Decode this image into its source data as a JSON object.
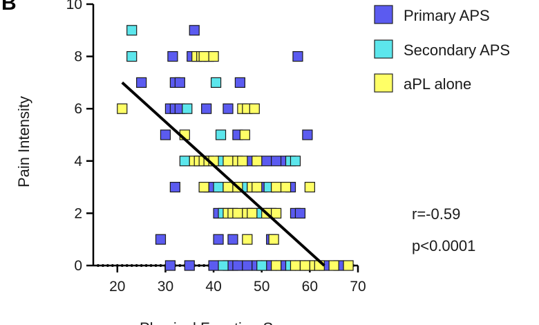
{
  "chart_data": {
    "type": "scatter",
    "panel_label": "B",
    "title": "",
    "xlabel": "Physical Function Score",
    "ylabel": "Pain Intensity",
    "xlim": [
      15,
      70
    ],
    "ylim": [
      0,
      10
    ],
    "xticks": [
      20,
      30,
      40,
      50,
      60,
      70
    ],
    "yticks": [
      0,
      2,
      4,
      6,
      8,
      10
    ],
    "legend_position": "top-right",
    "series": [
      {
        "name": "Primary APS",
        "color": "#5b5bf0",
        "points": [
          [
            36,
            9
          ],
          [
            31.5,
            8
          ],
          [
            35.5,
            8
          ],
          [
            57.5,
            8
          ],
          [
            25,
            7
          ],
          [
            32,
            7
          ],
          [
            33,
            7
          ],
          [
            45.5,
            7
          ],
          [
            31,
            6
          ],
          [
            32,
            6
          ],
          [
            33,
            6
          ],
          [
            38.5,
            6
          ],
          [
            43,
            6
          ],
          [
            30,
            5
          ],
          [
            45,
            5
          ],
          [
            59.5,
            5
          ],
          [
            37,
            4
          ],
          [
            42,
            4
          ],
          [
            48,
            4
          ],
          [
            51,
            4
          ],
          [
            53,
            4
          ],
          [
            55,
            4
          ],
          [
            32,
            3
          ],
          [
            38,
            3
          ],
          [
            39,
            3
          ],
          [
            40,
            3
          ],
          [
            42,
            3
          ],
          [
            44,
            3
          ],
          [
            47,
            3
          ],
          [
            50,
            3
          ],
          [
            53,
            3
          ],
          [
            56,
            3
          ],
          [
            41,
            2
          ],
          [
            49,
            2
          ],
          [
            52,
            2
          ],
          [
            57,
            2
          ],
          [
            58,
            2
          ],
          [
            29,
            1
          ],
          [
            41,
            1
          ],
          [
            44,
            1
          ],
          [
            52,
            1
          ],
          [
            31,
            0
          ],
          [
            35,
            0
          ],
          [
            40,
            0
          ],
          [
            43,
            0
          ],
          [
            44,
            0
          ],
          [
            45,
            0
          ],
          [
            47,
            0
          ],
          [
            49,
            0
          ],
          [
            51,
            0
          ],
          [
            52,
            0
          ],
          [
            54,
            0
          ],
          [
            55,
            0
          ],
          [
            58,
            0
          ],
          [
            63,
            0
          ],
          [
            66,
            0
          ]
        ]
      },
      {
        "name": "Secondary APS",
        "color": "#5ce6ec",
        "points": [
          [
            23,
            9
          ],
          [
            23,
            8
          ],
          [
            39,
            8
          ],
          [
            40.5,
            7
          ],
          [
            34.5,
            6
          ],
          [
            41.5,
            5
          ],
          [
            34,
            4
          ],
          [
            41.5,
            4
          ],
          [
            44,
            4
          ],
          [
            56,
            4
          ],
          [
            57,
            4
          ],
          [
            41,
            3
          ],
          [
            43,
            3
          ],
          [
            46,
            3
          ],
          [
            51.5,
            3
          ],
          [
            42,
            2
          ],
          [
            47,
            2
          ],
          [
            50,
            2
          ],
          [
            42,
            0
          ],
          [
            50,
            0
          ],
          [
            56,
            0
          ],
          [
            60,
            0
          ]
        ]
      },
      {
        "name": "aPL alone",
        "color": "#ffff66",
        "points": [
          [
            36.5,
            8
          ],
          [
            37.5,
            8
          ],
          [
            38,
            8
          ],
          [
            40,
            8
          ],
          [
            21,
            6
          ],
          [
            46,
            6
          ],
          [
            47,
            6
          ],
          [
            48.5,
            6
          ],
          [
            34,
            5
          ],
          [
            46.5,
            5
          ],
          [
            36,
            4
          ],
          [
            37,
            4
          ],
          [
            38,
            4
          ],
          [
            39,
            4
          ],
          [
            40,
            4
          ],
          [
            43,
            4
          ],
          [
            45,
            4
          ],
          [
            46,
            4
          ],
          [
            49,
            4
          ],
          [
            38,
            3
          ],
          [
            43,
            3
          ],
          [
            45,
            3
          ],
          [
            48,
            3
          ],
          [
            49,
            3
          ],
          [
            53,
            3
          ],
          [
            55,
            3
          ],
          [
            60,
            3
          ],
          [
            43,
            2
          ],
          [
            44,
            2
          ],
          [
            45,
            2
          ],
          [
            47,
            2
          ],
          [
            48,
            2
          ],
          [
            51,
            2
          ],
          [
            53,
            2
          ],
          [
            47,
            1
          ],
          [
            52.5,
            1
          ],
          [
            53,
            0
          ],
          [
            57,
            0
          ],
          [
            59,
            0
          ],
          [
            61,
            0
          ],
          [
            62,
            0
          ],
          [
            65,
            0
          ],
          [
            68,
            0
          ]
        ]
      }
    ],
    "regression_line": {
      "x": [
        21,
        63
      ],
      "y": [
        7,
        0
      ]
    },
    "annotations": [
      "r=-0.59",
      "p<0.0001"
    ]
  }
}
